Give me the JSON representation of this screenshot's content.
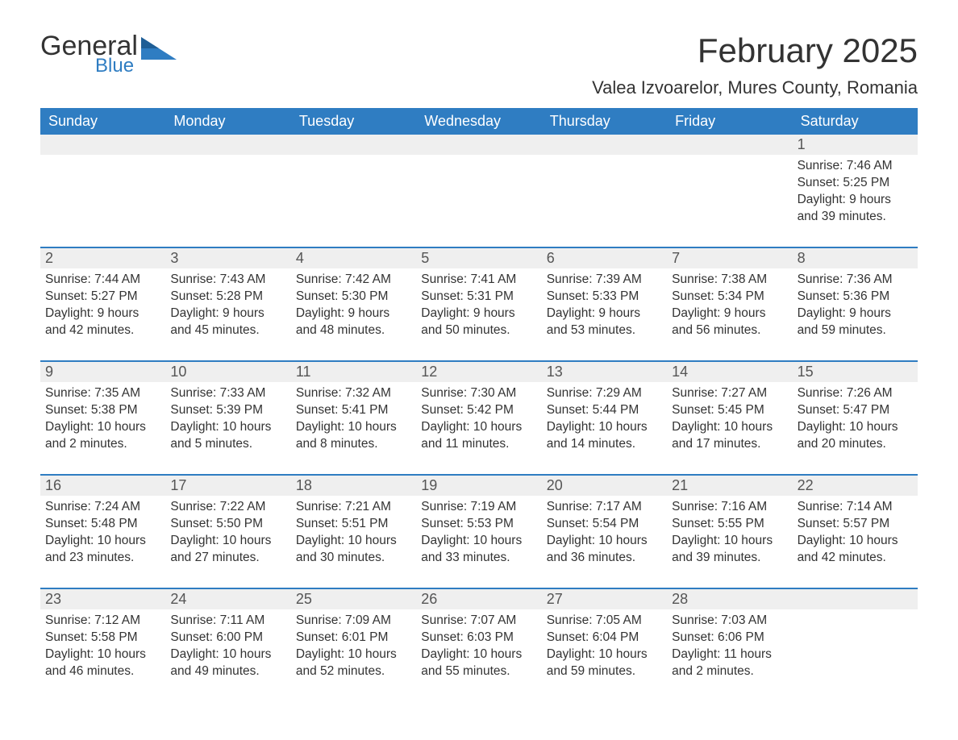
{
  "logo": {
    "word1": "General",
    "word2": "Blue",
    "accent": "#2f7dc2",
    "text_color": "#333333"
  },
  "title": "February 2025",
  "location": "Valea Izvoarelor, Mures County, Romania",
  "theme": {
    "header_bg": "#2f7dc2",
    "header_fg": "#ffffff",
    "daynum_bg": "#efefef",
    "body_bg": "#ffffff",
    "text": "#333333",
    "rule": "#2f7dc2"
  },
  "columns": [
    "Sunday",
    "Monday",
    "Tuesday",
    "Wednesday",
    "Thursday",
    "Friday",
    "Saturday"
  ],
  "weeks": [
    [
      null,
      null,
      null,
      null,
      null,
      null,
      {
        "n": "1",
        "sunrise": "Sunrise: 7:46 AM",
        "sunset": "Sunset: 5:25 PM",
        "daylight": "Daylight: 9 hours and 39 minutes."
      }
    ],
    [
      {
        "n": "2",
        "sunrise": "Sunrise: 7:44 AM",
        "sunset": "Sunset: 5:27 PM",
        "daylight": "Daylight: 9 hours and 42 minutes."
      },
      {
        "n": "3",
        "sunrise": "Sunrise: 7:43 AM",
        "sunset": "Sunset: 5:28 PM",
        "daylight": "Daylight: 9 hours and 45 minutes."
      },
      {
        "n": "4",
        "sunrise": "Sunrise: 7:42 AM",
        "sunset": "Sunset: 5:30 PM",
        "daylight": "Daylight: 9 hours and 48 minutes."
      },
      {
        "n": "5",
        "sunrise": "Sunrise: 7:41 AM",
        "sunset": "Sunset: 5:31 PM",
        "daylight": "Daylight: 9 hours and 50 minutes."
      },
      {
        "n": "6",
        "sunrise": "Sunrise: 7:39 AM",
        "sunset": "Sunset: 5:33 PM",
        "daylight": "Daylight: 9 hours and 53 minutes."
      },
      {
        "n": "7",
        "sunrise": "Sunrise: 7:38 AM",
        "sunset": "Sunset: 5:34 PM",
        "daylight": "Daylight: 9 hours and 56 minutes."
      },
      {
        "n": "8",
        "sunrise": "Sunrise: 7:36 AM",
        "sunset": "Sunset: 5:36 PM",
        "daylight": "Daylight: 9 hours and 59 minutes."
      }
    ],
    [
      {
        "n": "9",
        "sunrise": "Sunrise: 7:35 AM",
        "sunset": "Sunset: 5:38 PM",
        "daylight": "Daylight: 10 hours and 2 minutes."
      },
      {
        "n": "10",
        "sunrise": "Sunrise: 7:33 AM",
        "sunset": "Sunset: 5:39 PM",
        "daylight": "Daylight: 10 hours and 5 minutes."
      },
      {
        "n": "11",
        "sunrise": "Sunrise: 7:32 AM",
        "sunset": "Sunset: 5:41 PM",
        "daylight": "Daylight: 10 hours and 8 minutes."
      },
      {
        "n": "12",
        "sunrise": "Sunrise: 7:30 AM",
        "sunset": "Sunset: 5:42 PM",
        "daylight": "Daylight: 10 hours and 11 minutes."
      },
      {
        "n": "13",
        "sunrise": "Sunrise: 7:29 AM",
        "sunset": "Sunset: 5:44 PM",
        "daylight": "Daylight: 10 hours and 14 minutes."
      },
      {
        "n": "14",
        "sunrise": "Sunrise: 7:27 AM",
        "sunset": "Sunset: 5:45 PM",
        "daylight": "Daylight: 10 hours and 17 minutes."
      },
      {
        "n": "15",
        "sunrise": "Sunrise: 7:26 AM",
        "sunset": "Sunset: 5:47 PM",
        "daylight": "Daylight: 10 hours and 20 minutes."
      }
    ],
    [
      {
        "n": "16",
        "sunrise": "Sunrise: 7:24 AM",
        "sunset": "Sunset: 5:48 PM",
        "daylight": "Daylight: 10 hours and 23 minutes."
      },
      {
        "n": "17",
        "sunrise": "Sunrise: 7:22 AM",
        "sunset": "Sunset: 5:50 PM",
        "daylight": "Daylight: 10 hours and 27 minutes."
      },
      {
        "n": "18",
        "sunrise": "Sunrise: 7:21 AM",
        "sunset": "Sunset: 5:51 PM",
        "daylight": "Daylight: 10 hours and 30 minutes."
      },
      {
        "n": "19",
        "sunrise": "Sunrise: 7:19 AM",
        "sunset": "Sunset: 5:53 PM",
        "daylight": "Daylight: 10 hours and 33 minutes."
      },
      {
        "n": "20",
        "sunrise": "Sunrise: 7:17 AM",
        "sunset": "Sunset: 5:54 PM",
        "daylight": "Daylight: 10 hours and 36 minutes."
      },
      {
        "n": "21",
        "sunrise": "Sunrise: 7:16 AM",
        "sunset": "Sunset: 5:55 PM",
        "daylight": "Daylight: 10 hours and 39 minutes."
      },
      {
        "n": "22",
        "sunrise": "Sunrise: 7:14 AM",
        "sunset": "Sunset: 5:57 PM",
        "daylight": "Daylight: 10 hours and 42 minutes."
      }
    ],
    [
      {
        "n": "23",
        "sunrise": "Sunrise: 7:12 AM",
        "sunset": "Sunset: 5:58 PM",
        "daylight": "Daylight: 10 hours and 46 minutes."
      },
      {
        "n": "24",
        "sunrise": "Sunrise: 7:11 AM",
        "sunset": "Sunset: 6:00 PM",
        "daylight": "Daylight: 10 hours and 49 minutes."
      },
      {
        "n": "25",
        "sunrise": "Sunrise: 7:09 AM",
        "sunset": "Sunset: 6:01 PM",
        "daylight": "Daylight: 10 hours and 52 minutes."
      },
      {
        "n": "26",
        "sunrise": "Sunrise: 7:07 AM",
        "sunset": "Sunset: 6:03 PM",
        "daylight": "Daylight: 10 hours and 55 minutes."
      },
      {
        "n": "27",
        "sunrise": "Sunrise: 7:05 AM",
        "sunset": "Sunset: 6:04 PM",
        "daylight": "Daylight: 10 hours and 59 minutes."
      },
      {
        "n": "28",
        "sunrise": "Sunrise: 7:03 AM",
        "sunset": "Sunset: 6:06 PM",
        "daylight": "Daylight: 11 hours and 2 minutes."
      },
      null
    ]
  ]
}
